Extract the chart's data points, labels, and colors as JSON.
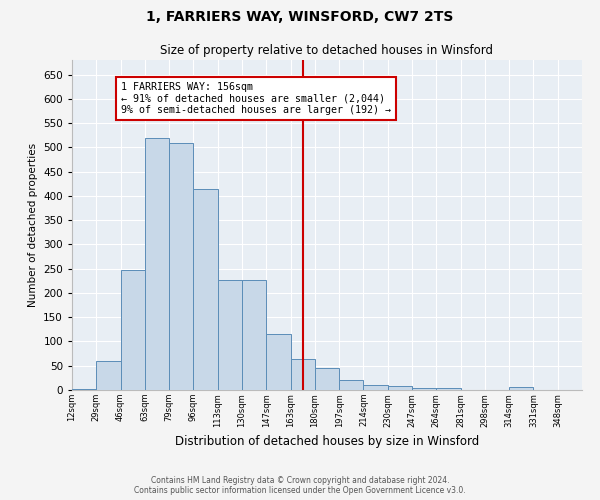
{
  "title": "1, FARRIERS WAY, WINSFORD, CW7 2TS",
  "subtitle": "Size of property relative to detached houses in Winsford",
  "xlabel": "Distribution of detached houses by size in Winsford",
  "ylabel": "Number of detached properties",
  "bar_values": [
    2,
    59,
    247,
    519,
    510,
    414,
    227,
    227,
    116,
    63,
    46,
    20,
    11,
    8,
    5,
    5,
    0,
    0,
    6,
    0,
    0
  ],
  "categories": [
    "12sqm",
    "29sqm",
    "46sqm",
    "63sqm",
    "79sqm",
    "96sqm",
    "113sqm",
    "130sqm",
    "147sqm",
    "163sqm",
    "180sqm",
    "197sqm",
    "214sqm",
    "230sqm",
    "247sqm",
    "264sqm",
    "281sqm",
    "298sqm",
    "314sqm",
    "331sqm",
    "348sqm"
  ],
  "bar_colors_main": "#c8d8e8",
  "bar_edge_color": "#5b8db8",
  "property_line_x": 9.0,
  "annotation_text": "1 FARRIERS WAY: 156sqm\n← 91% of detached houses are smaller (2,044)\n9% of semi-detached houses are larger (192) →",
  "annotation_box_color": "#ffffff",
  "annotation_box_edge": "#cc0000",
  "vline_color": "#cc0000",
  "ylim": [
    0,
    680
  ],
  "yticks": [
    0,
    50,
    100,
    150,
    200,
    250,
    300,
    350,
    400,
    450,
    500,
    550,
    600,
    650
  ],
  "bg_color": "#e8eef4",
  "grid_color": "#ffffff",
  "fig_bg_color": "#f4f4f4",
  "footer_line1": "Contains HM Land Registry data © Crown copyright and database right 2024.",
  "footer_line2": "Contains public sector information licensed under the Open Government Licence v3.0."
}
